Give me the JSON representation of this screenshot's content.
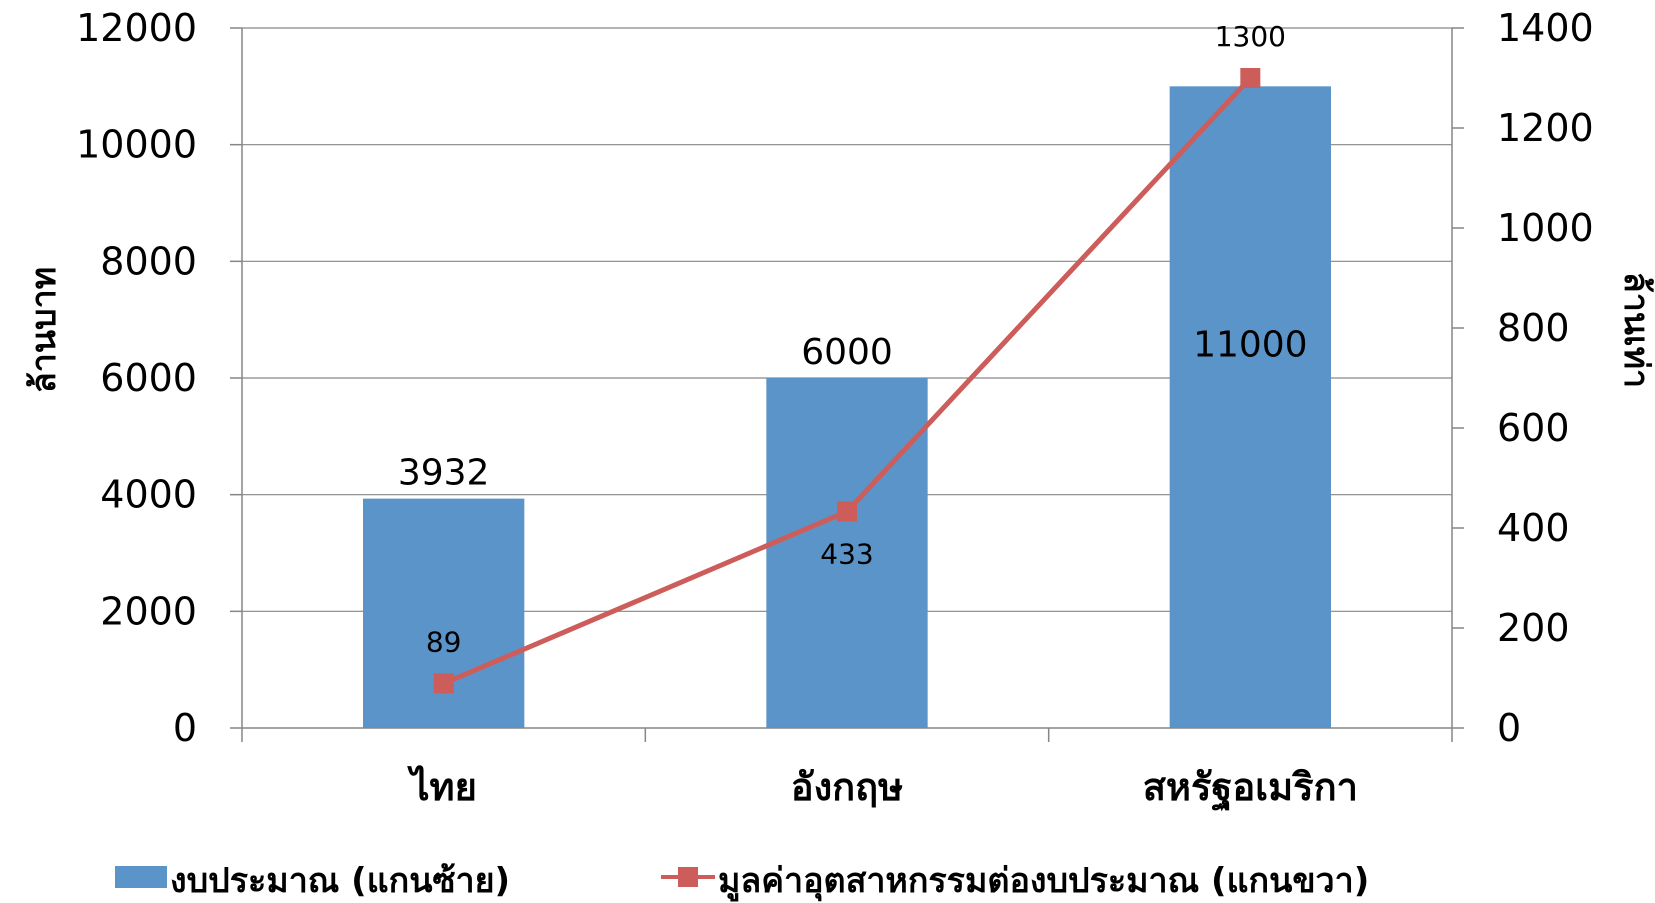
{
  "chart_data": {
    "type": "bar",
    "categories": [
      "ไทย",
      "อังกฤษ",
      "สหรัฐอเมริกา"
    ],
    "series": [
      {
        "name": "งบประมาณ (แกนซ้าย)",
        "type": "bar",
        "axis": "left",
        "values": [
          3932,
          6000,
          11000
        ],
        "data_labels": [
          "3932",
          "6000",
          "11000"
        ],
        "color": "#5B94C8"
      },
      {
        "name": "มูลค่าอุตสาหกรรมต่องบประมาณ (แกนขวา)",
        "type": "line",
        "axis": "right",
        "values": [
          89,
          433,
          1300
        ],
        "data_labels": [
          "89",
          "433",
          "1300"
        ],
        "color": "#CD5D5A"
      }
    ],
    "ylabel": "ล้านบาท",
    "y2label": "ล้านเท่า",
    "ylim": [
      0,
      12000
    ],
    "y2lim": [
      0,
      1400
    ],
    "yticks": [
      "0",
      "2000",
      "4000",
      "6000",
      "8000",
      "10000",
      "12000"
    ],
    "y2ticks": [
      "0",
      "200",
      "400",
      "600",
      "800",
      "1000",
      "1200",
      "1400"
    ],
    "grid": true,
    "legend_position": "bottom"
  }
}
